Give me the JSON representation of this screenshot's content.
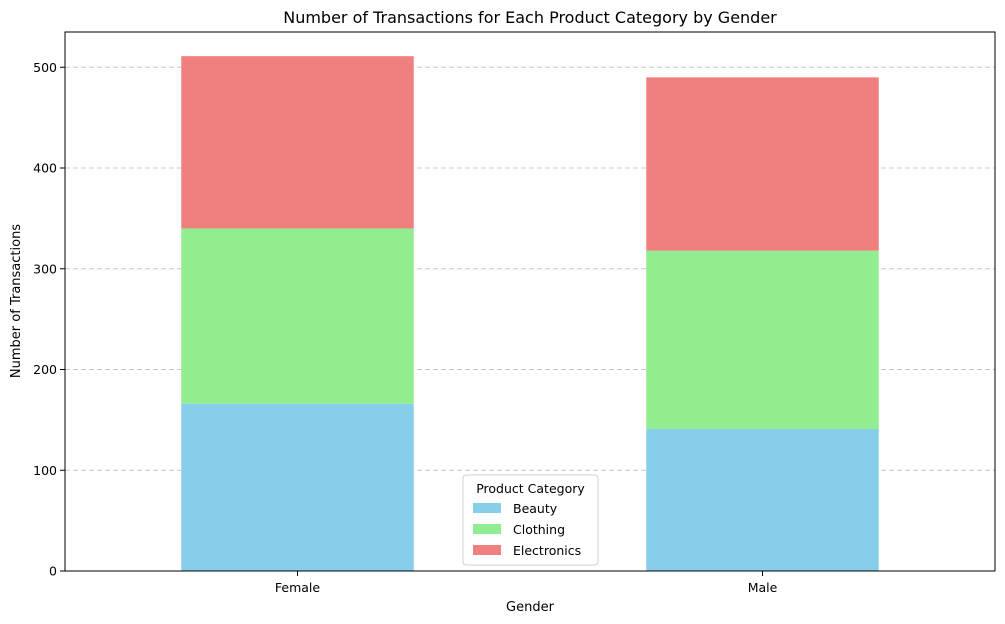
{
  "chart_data": {
    "type": "bar",
    "stacked": true,
    "title": "Number of Transactions for Each Product Category by Gender",
    "xlabel": "Gender",
    "ylabel": "Number of Transactions",
    "categories": [
      "Female",
      "Male"
    ],
    "series": [
      {
        "name": "Beauty",
        "values": [
          166,
          141
        ],
        "color": "#87ceeb"
      },
      {
        "name": "Clothing",
        "values": [
          174,
          177
        ],
        "color": "#90ee90"
      },
      {
        "name": "Electronics",
        "values": [
          171,
          172
        ],
        "color": "#f08080"
      }
    ],
    "ylim": [
      0,
      535
    ],
    "yticks": [
      0,
      100,
      200,
      300,
      400,
      500
    ],
    "grid": "y-dashed",
    "legend": {
      "title": "Product Category",
      "placement": "bottom-center"
    }
  }
}
